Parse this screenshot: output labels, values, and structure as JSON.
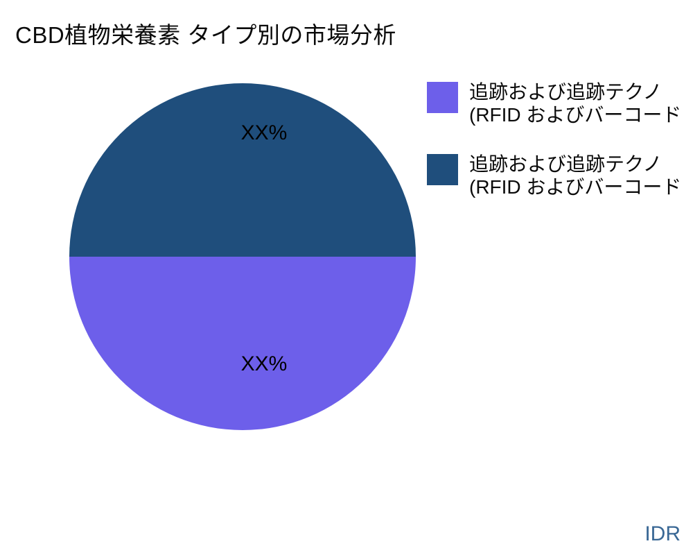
{
  "title": "CBD植物栄養素 タイプ別の市場分析",
  "watermark": "IDR",
  "colors": {
    "slice_top_navy": "#1F4E7C",
    "slice_bottom_purple": "#6D5FEA",
    "watermark_blue": "#3A6895",
    "label_black": "#000000",
    "background": "#ffffff"
  },
  "chart_data": {
    "type": "pie",
    "title": "CBD植物栄養素 タイプ別の市場分析",
    "legend_position": "right",
    "slices": [
      {
        "position": "top",
        "label": "XX%",
        "value_pct": 50,
        "color": "#1F4E7C",
        "legend_line1": "追跡および追跡テクノ",
        "legend_line2": "(RFID およびバーコード"
      },
      {
        "position": "bottom",
        "label": "XX%",
        "value_pct": 50,
        "color": "#6D5FEA",
        "legend_line1": "追跡および追跡テクノ",
        "legend_line2": "(RFID およびバーコード"
      }
    ]
  },
  "legend": {
    "items": [
      {
        "color": "#6D5FEA",
        "line1": "追跡および追跡テクノ",
        "line2": "(RFID およびバーコード"
      },
      {
        "color": "#1F4E7C",
        "line1": "追跡および追跡テクノ",
        "line2": "(RFID およびバーコード"
      }
    ]
  }
}
